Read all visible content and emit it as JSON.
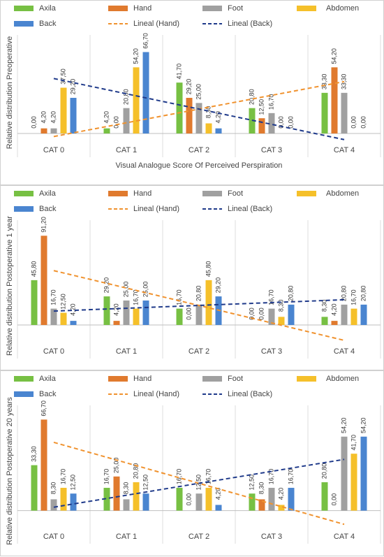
{
  "chart_data": [
    {
      "type": "bar",
      "y_label": "Relative distribution Preoperative",
      "x_label": "Visual Analogue Score Of Perceived Perspiration",
      "categories": [
        "CAT 0",
        "CAT 1",
        "CAT 2",
        "CAT 3",
        "CAT 4"
      ],
      "ylim": [
        -8,
        75
      ],
      "series": [
        {
          "name": "Axila",
          "color": "#77c043",
          "values": [
            0,
            4.2,
            41.7,
            20.8,
            33.3
          ],
          "value_labels": [
            "0,00",
            "4,20",
            "41,70",
            "20,80",
            "33,30"
          ]
        },
        {
          "name": "Hand",
          "color": "#e07a2e",
          "values": [
            4.2,
            0,
            29.2,
            12.5,
            54.2
          ],
          "value_labels": [
            "4,20",
            "0,00",
            "29,20",
            "12,50",
            "54,20"
          ]
        },
        {
          "name": "Foot",
          "color": "#a0a0a0",
          "values": [
            4.2,
            20.8,
            25,
            16.7,
            33.3
          ],
          "value_labels": [
            "4,20",
            "20,80",
            "25,00",
            "16,70",
            "33,30"
          ]
        },
        {
          "name": "Abdomen",
          "color": "#f5c02a",
          "values": [
            37.5,
            54.2,
            8.3,
            0,
            0
          ],
          "value_labels": [
            "37,50",
            "54,20",
            "8,30",
            "0,00",
            "0,00"
          ]
        },
        {
          "name": "Back",
          "color": "#4a85d0",
          "values": [
            29.2,
            66.7,
            4.2,
            0,
            0
          ],
          "value_labels": [
            "29,20",
            "66,70",
            "4,20",
            "0,00",
            "0,00"
          ]
        }
      ],
      "trendlines": [
        {
          "series": 1,
          "name": "Lineal (Hand)",
          "color": "#f0922e"
        },
        {
          "series": 4,
          "name": "Lineal (Back)",
          "color": "#1f3a8a"
        }
      ]
    },
    {
      "type": "bar",
      "y_label": "Relative distribution Postoperative 1 year",
      "categories": [
        "CAT 0",
        "CAT 1",
        "CAT 2",
        "CAT 3",
        "CAT 4"
      ],
      "ylim": [
        -20,
        100
      ],
      "series": [
        {
          "name": "Axila",
          "color": "#77c043",
          "values": [
            45.8,
            29.2,
            16.7,
            0,
            8.3
          ],
          "value_labels": [
            "45,80",
            "29,20",
            "16,70",
            "0,00",
            "8,30"
          ]
        },
        {
          "name": "Hand",
          "color": "#e07a2e",
          "values": [
            91.2,
            4.2,
            0,
            0,
            4.2
          ],
          "value_labels": [
            "91,20",
            "4,20",
            "0,00",
            "0,00",
            "4,20"
          ]
        },
        {
          "name": "Foot",
          "color": "#a0a0a0",
          "values": [
            16.7,
            25,
            20.8,
            16.7,
            20.8
          ],
          "value_labels": [
            "16,70",
            "25,00",
            "20,80",
            "16,70",
            "20,80"
          ]
        },
        {
          "name": "Abdomen",
          "color": "#f5c02a",
          "values": [
            12.5,
            16.7,
            45.8,
            8.3,
            16.7
          ],
          "value_labels": [
            "12,50",
            "16,70",
            "45,80",
            "8,30",
            "16,70"
          ]
        },
        {
          "name": "Back",
          "color": "#4a85d0",
          "values": [
            4.2,
            25,
            29.2,
            20.8,
            20.8
          ],
          "value_labels": [
            "4,20",
            "25,00",
            "29,20",
            "20,80",
            "20,80"
          ]
        }
      ],
      "trendlines": [
        {
          "series": 1,
          "name": "Lineal (Hand)",
          "color": "#f0922e"
        },
        {
          "series": 4,
          "name": "Lineal (Back)",
          "color": "#1f3a8a"
        }
      ]
    },
    {
      "type": "bar",
      "y_label": "Relative distribution Postoperative 20 years",
      "categories": [
        "CAT 0",
        "CAT 1",
        "CAT 2",
        "CAT 3",
        "CAT 4"
      ],
      "ylim": [
        -14,
        72
      ],
      "series": [
        {
          "name": "Axila",
          "color": "#77c043",
          "values": [
            33.3,
            16.7,
            16.7,
            12.5,
            20.8
          ],
          "value_labels": [
            "33,30",
            "16,70",
            "16,70",
            "12,50",
            "20,80"
          ]
        },
        {
          "name": "Hand",
          "color": "#e07a2e",
          "values": [
            66.7,
            25,
            0,
            8.3,
            0
          ],
          "value_labels": [
            "66,70",
            "25,00",
            "0,00",
            "8,30",
            "0,00"
          ]
        },
        {
          "name": "Foot",
          "color": "#a0a0a0",
          "values": [
            8.3,
            8.3,
            12.5,
            16.7,
            54.2
          ],
          "value_labels": [
            "8,30",
            "8,30",
            "12,50",
            "16,70",
            "54,20"
          ]
        },
        {
          "name": "Abdomen",
          "color": "#f5c02a",
          "values": [
            16.7,
            20.8,
            16.7,
            4.2,
            41.7
          ],
          "value_labels": [
            "16,70",
            "20,80",
            "16,70",
            "4,20",
            "41,70"
          ]
        },
        {
          "name": "Back",
          "color": "#4a85d0",
          "values": [
            12.5,
            12.5,
            4.2,
            16.7,
            54.2
          ],
          "value_labels": [
            "12,50",
            "12,50",
            "4,20",
            "16,70",
            "54,20"
          ]
        }
      ],
      "trendlines": [
        {
          "series": 1,
          "name": "Lineal (Hand)",
          "color": "#f0922e"
        },
        {
          "series": 4,
          "name": "Lineal (Back)",
          "color": "#1f3a8a"
        }
      ]
    }
  ]
}
